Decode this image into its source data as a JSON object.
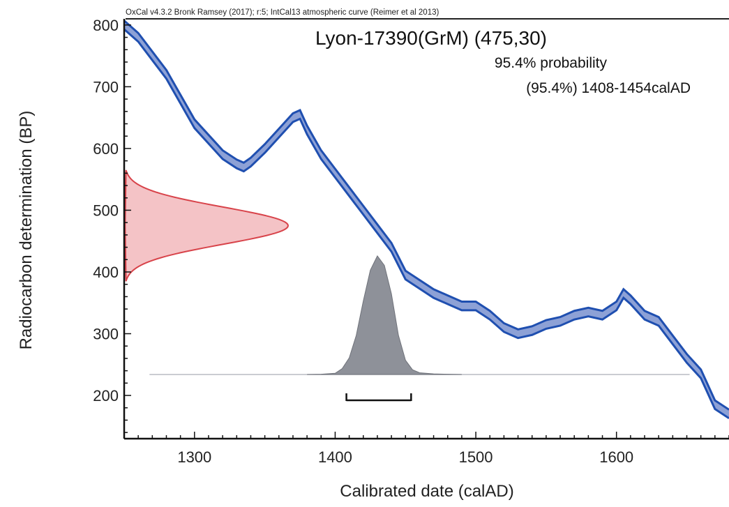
{
  "chart_data": {
    "type": "area",
    "header": "OxCal v4.3.2 Bronk Ramsey (2017); r:5; IntCal13 atmospheric curve (Reimer et al 2013)",
    "title": "Lyon-17390(GrM) (475,30)",
    "annotations": [
      "95.4% probability",
      "(95.4%) 1408-1454calAD"
    ],
    "xlabel": "Calibrated date (calAD)",
    "ylabel": "Radiocarbon determination (BP)",
    "xlim": [
      1250,
      1680
    ],
    "ylim": [
      130,
      810
    ],
    "x_ticks": [
      1300,
      1400,
      1500,
      1600
    ],
    "y_ticks": [
      200,
      300,
      400,
      500,
      600,
      700,
      800
    ],
    "colors": {
      "curve_stroke": "#1f4fb0",
      "curve_fill": "#8da1d6",
      "radiocarbon_fill": "#f4c3c6",
      "radiocarbon_stroke": "#d8434a",
      "posterior_fill": "#8e9199",
      "range_bar": "#111111"
    },
    "series": [
      {
        "kind": "calibration-curve",
        "x": [
          1250,
          1260,
          1270,
          1280,
          1290,
          1300,
          1310,
          1320,
          1330,
          1335,
          1340,
          1350,
          1360,
          1370,
          1375,
          1380,
          1390,
          1400,
          1410,
          1420,
          1430,
          1440,
          1450,
          1460,
          1470,
          1480,
          1490,
          1500,
          1510,
          1520,
          1530,
          1540,
          1550,
          1560,
          1570,
          1580,
          1590,
          1600,
          1605,
          1610,
          1620,
          1630,
          1640,
          1650,
          1660,
          1670,
          1680
        ],
        "y": [
          800,
          780,
          750,
          720,
          680,
          640,
          615,
          590,
          575,
          570,
          578,
          600,
          625,
          650,
          655,
          630,
          590,
          560,
          530,
          500,
          470,
          440,
          395,
          380,
          365,
          355,
          345,
          345,
          330,
          310,
          300,
          305,
          315,
          320,
          330,
          335,
          330,
          345,
          365,
          355,
          330,
          320,
          290,
          260,
          235,
          185,
          170
        ],
        "band_halfwidth": 7
      },
      {
        "kind": "radiocarbon-determination",
        "mean": 475,
        "sd": 30
      },
      {
        "kind": "posterior-distribution",
        "x": [
          1380,
          1390,
          1400,
          1405,
          1410,
          1415,
          1420,
          1425,
          1430,
          1435,
          1440,
          1445,
          1450,
          1455,
          1460,
          1470,
          1480,
          1490
        ],
        "density": [
          0.0,
          0.002,
          0.01,
          0.05,
          0.14,
          0.33,
          0.62,
          0.88,
          1.0,
          0.92,
          0.68,
          0.33,
          0.12,
          0.04,
          0.015,
          0.005,
          0.002,
          0.0
        ]
      }
    ],
    "range_bar": {
      "from": 1408,
      "to": 1454,
      "probability": 95.4
    }
  }
}
